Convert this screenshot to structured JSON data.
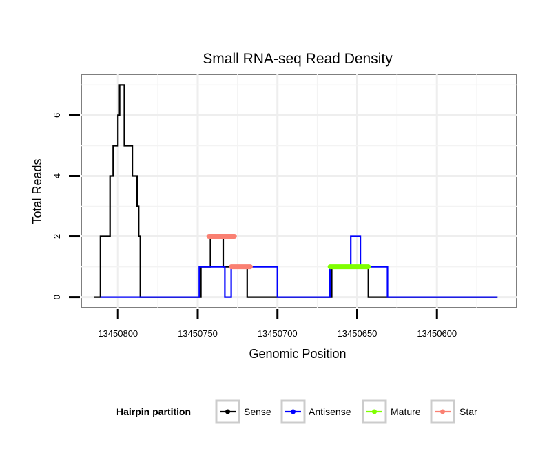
{
  "chart_data": {
    "type": "line",
    "title": "Small RNA-seq Read Density",
    "xlabel": "Genomic Position",
    "ylabel": "Total Reads",
    "xlim": [
      13450823,
      13450550
    ],
    "ylim": [
      -0.35,
      7.35
    ],
    "x_ticks": [
      13450800,
      13450750,
      13450700,
      13450650,
      13450600
    ],
    "x_tick_labels": [
      "13450800",
      "13450750",
      "13450700",
      "13450650",
      "13450600"
    ],
    "y_ticks": [
      0,
      2,
      4,
      6
    ],
    "y_tick_labels": [
      "0",
      "2",
      "4",
      "6"
    ],
    "grid": true,
    "legend": {
      "title": "Hairpin partition",
      "position": "bottom",
      "entries": [
        {
          "name": "Sense",
          "color": "#000000"
        },
        {
          "name": "Antisense",
          "color": "#0000ff"
        },
        {
          "name": "Mature",
          "color": "#7fff00"
        },
        {
          "name": "Star",
          "color": "#fa8072"
        }
      ]
    },
    "series": [
      {
        "name": "Sense",
        "color": "#000000",
        "step_points": [
          [
            13450815,
            0
          ],
          [
            13450811,
            0
          ],
          [
            13450811,
            2
          ],
          [
            13450805,
            2
          ],
          [
            13450805,
            4
          ],
          [
            13450803,
            4
          ],
          [
            13450803,
            5
          ],
          [
            13450800,
            5
          ],
          [
            13450800,
            6
          ],
          [
            13450799,
            6
          ],
          [
            13450799,
            7
          ],
          [
            13450796,
            7
          ],
          [
            13450796,
            5
          ],
          [
            13450791,
            5
          ],
          [
            13450791,
            4
          ],
          [
            13450788,
            4
          ],
          [
            13450788,
            3
          ],
          [
            13450787,
            3
          ],
          [
            13450787,
            2
          ],
          [
            13450786,
            2
          ],
          [
            13450786,
            0
          ],
          [
            13450748,
            0
          ],
          [
            13450748,
            1
          ],
          [
            13450742,
            1
          ],
          [
            13450742,
            2
          ],
          [
            13450734,
            2
          ],
          [
            13450734,
            1
          ],
          [
            13450719,
            1
          ],
          [
            13450719,
            0
          ],
          [
            13450666,
            0
          ],
          [
            13450666,
            1
          ],
          [
            13450643,
            1
          ],
          [
            13450643,
            0
          ],
          [
            13450562,
            0
          ]
        ]
      },
      {
        "name": "Antisense",
        "color": "#0000ff",
        "step_points": [
          [
            13450811,
            0
          ],
          [
            13450786,
            0
          ],
          [
            13450786,
            0
          ],
          [
            13450749,
            0
          ],
          [
            13450749,
            1
          ],
          [
            13450733,
            1
          ],
          [
            13450733,
            0
          ],
          [
            13450729,
            0
          ],
          [
            13450729,
            1
          ],
          [
            13450700,
            1
          ],
          [
            13450700,
            0
          ],
          [
            13450667,
            0
          ],
          [
            13450667,
            1
          ],
          [
            13450654,
            1
          ],
          [
            13450654,
            2
          ],
          [
            13450648,
            2
          ],
          [
            13450648,
            1
          ],
          [
            13450631,
            1
          ],
          [
            13450631,
            0
          ],
          [
            13450562,
            0
          ]
        ]
      },
      {
        "name": "Mature",
        "color": "#7fff00",
        "segments": [
          {
            "start": 13450667,
            "end": 13450643,
            "value": 1
          }
        ]
      },
      {
        "name": "Star",
        "color": "#fa8072",
        "segments": [
          {
            "start": 13450743,
            "end": 13450727,
            "value": 2
          },
          {
            "start": 13450729,
            "end": 13450717,
            "value": 1
          }
        ]
      }
    ]
  }
}
